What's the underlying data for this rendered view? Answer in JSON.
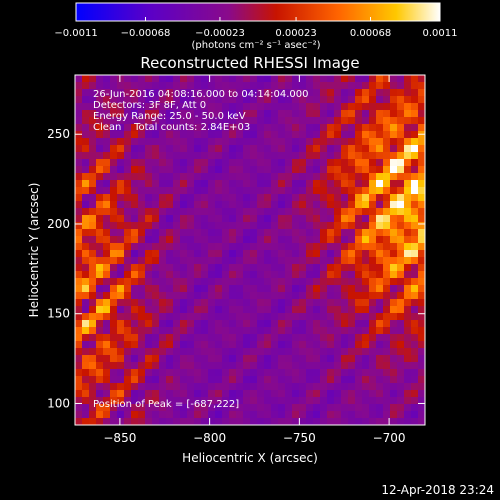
{
  "chart_data": {
    "type": "heatmap",
    "title": "Reconstructed RHESSI Image",
    "xlabel": "Heliocentric X (arcsec)",
    "ylabel": "Heliocentric Y (arcsec)",
    "xlim": [
      -875,
      -680
    ],
    "ylim": [
      88,
      283
    ],
    "x_ticks": [
      {
        "value": -850,
        "label": "−850"
      },
      {
        "value": -800,
        "label": "−800"
      },
      {
        "value": -750,
        "label": "−750"
      },
      {
        "value": -700,
        "label": "−700"
      }
    ],
    "y_ticks": [
      {
        "value": 100,
        "label": "100"
      },
      {
        "value": 150,
        "label": "150"
      },
      {
        "value": 200,
        "label": "200"
      },
      {
        "value": 250,
        "label": "250"
      }
    ],
    "colorbar": {
      "min": -0.0011,
      "max": 0.0011,
      "ticks": [
        {
          "value": -0.0011,
          "label": "−0.0011"
        },
        {
          "value": -0.00068,
          "label": "−0.00068"
        },
        {
          "value": -0.00023,
          "label": "−0.00023"
        },
        {
          "value": 0.00023,
          "label": "0.00023"
        },
        {
          "value": 0.00068,
          "label": "0.00068"
        },
        {
          "value": 0.0011,
          "label": "0.0011"
        }
      ],
      "units": "(photons cm⁻² s⁻¹ asec⁻²)",
      "colors": [
        "#0000ff",
        "#5a00c8",
        "#8a0a8a",
        "#c81400",
        "#ff6400",
        "#ffc800",
        "#ffffff"
      ]
    },
    "annotations": [
      "26-Jun-2016 04:08:16.000 to 04:14:04.000",
      "Detectors: 3F 8F, Att 0",
      "Energy Range: 25.0 - 50.0 keV",
      "Clean    Total counts: 2.84E+03"
    ],
    "peak_label": "Position of Peak = [-687,222]",
    "peak": {
      "x": -687,
      "y": 222
    },
    "grid": false
  },
  "timestamp": "12-Apr-2018 23:24"
}
